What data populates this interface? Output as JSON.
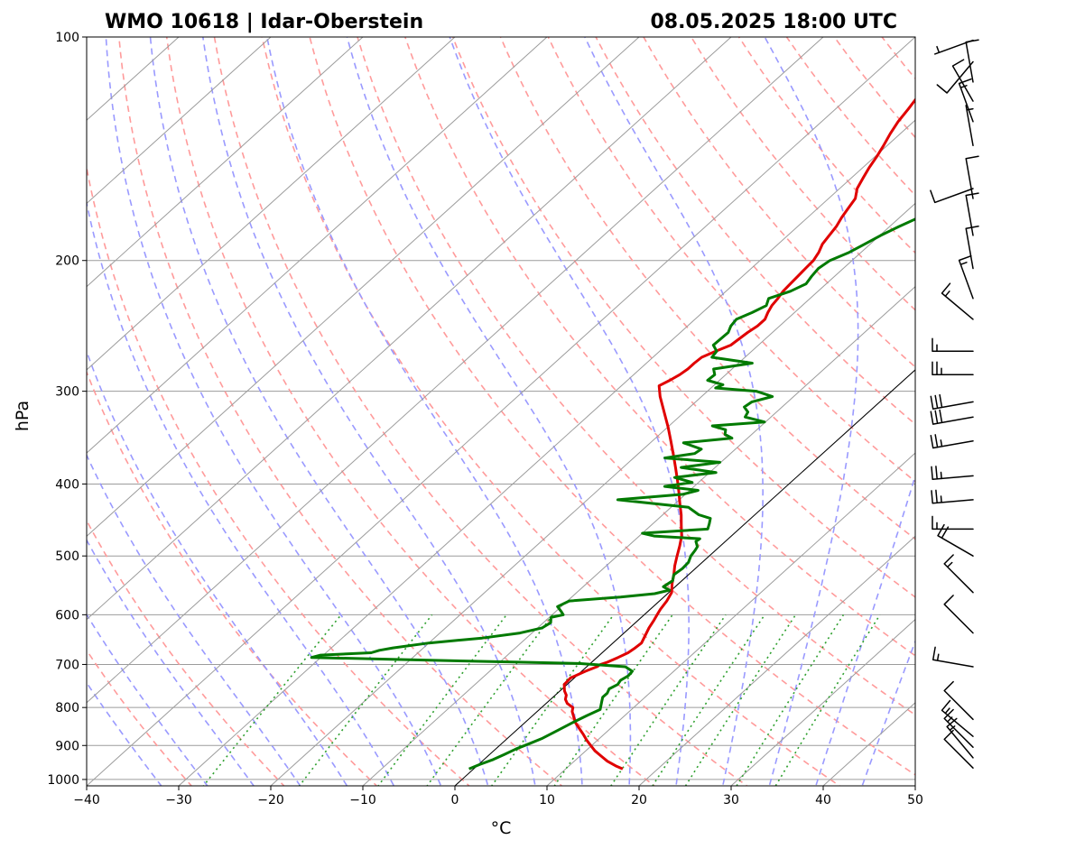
{
  "header": {
    "title_left": "WMO 10618 | Idar-Oberstein",
    "title_right": "08.05.2025 18:00 UTC"
  },
  "chart_data": {
    "type": "skew-t log-p",
    "xlabel": "°C",
    "ylabel": "hPa",
    "xlim": [
      -40,
      50
    ],
    "ylim": [
      1020,
      100
    ],
    "x_ticks": [
      -40,
      -30,
      -20,
      -10,
      0,
      10,
      20,
      30,
      40,
      50
    ],
    "x_tick_labels": [
      "−40",
      "−30",
      "−20",
      "−10",
      "0",
      "10",
      "20",
      "30",
      "40",
      "50"
    ],
    "p_ticks": [
      1000,
      900,
      800,
      700,
      600,
      500,
      400,
      300,
      200,
      100
    ],
    "p_tick_labels": [
      "1000",
      "900",
      "800",
      "700",
      "600",
      "500",
      "400",
      "300",
      "200",
      "100"
    ],
    "grid": true,
    "colors": {
      "temperature": "#e00000",
      "dewpoint": "#007a00",
      "dry_adiabat": "#ff9b9b",
      "moist_adiabat": "#9a9aff",
      "mixing_ratio": "#2ea02e",
      "isotherm": "#9c9c9c",
      "zero_isotherm": "#000000",
      "barb": "#000000"
    },
    "series": [
      {
        "key": "temperature",
        "pressure": [
          968,
          960,
          945,
          930,
          915,
          900,
          885,
          870,
          855,
          840,
          825,
          810,
          800,
          790,
          780,
          770,
          760,
          745,
          730,
          715,
          705,
          700,
          695,
          685,
          675,
          665,
          655,
          640,
          625,
          610,
          600,
          590,
          575,
          560,
          545,
          530,
          515,
          500,
          485,
          470,
          455,
          440,
          425,
          410,
          395,
          380,
          365,
          350,
          335,
          320,
          305,
          295,
          290,
          285,
          280,
          275,
          270,
          265,
          260,
          250,
          245,
          240,
          235,
          230,
          225,
          220,
          215,
          210,
          205,
          200,
          195,
          190,
          185,
          180,
          175,
          170,
          165,
          160,
          155,
          150,
          145,
          140,
          135,
          130,
          125,
          120,
          117,
          114,
          112,
          108,
          104,
          100
        ],
        "temperature": [
          16.2,
          15.2,
          13.6,
          12.3,
          11.0,
          9.9,
          8.8,
          7.8,
          6.7,
          5.6,
          4.7,
          3.8,
          3.4,
          2.3,
          1.6,
          1.2,
          0.5,
          -0.3,
          -0.4,
          0.4,
          1.1,
          1.2,
          1.7,
          2.3,
          2.8,
          3.0,
          3.1,
          2.6,
          2.1,
          1.7,
          1.4,
          1.1,
          0.8,
          0.3,
          -0.7,
          -1.6,
          -2.6,
          -3.5,
          -4.4,
          -5.4,
          -6.7,
          -8.0,
          -9.5,
          -11.0,
          -12.6,
          -14.3,
          -16.1,
          -18.0,
          -20.0,
          -22.2,
          -24.5,
          -25.9,
          -25.4,
          -25.0,
          -24.8,
          -24.8,
          -24.7,
          -23.9,
          -23.0,
          -22.7,
          -22.4,
          -22.4,
          -22.9,
          -23.3,
          -23.5,
          -23.8,
          -23.9,
          -24.0,
          -24.1,
          -24.2,
          -24.6,
          -25.2,
          -25.5,
          -25.8,
          -26.3,
          -26.7,
          -27.1,
          -28.1,
          -28.7,
          -29.3,
          -29.8,
          -30.4,
          -31.1,
          -31.7,
          -32.1,
          -32.6,
          -32.8,
          -33.1,
          -33.0,
          -33.6,
          -34.2,
          -34.9
        ]
      },
      {
        "key": "dewpoint",
        "pressure": [
          968,
          955,
          940,
          925,
          910,
          895,
          880,
          865,
          850,
          835,
          820,
          805,
          795,
          785,
          775,
          765,
          755,
          745,
          735,
          725,
          715,
          705,
          698,
          695,
          690,
          685,
          680,
          675,
          670,
          665,
          655,
          645,
          635,
          625,
          615,
          605,
          600,
          595,
          585,
          575,
          568,
          562,
          556,
          550,
          540,
          530,
          520,
          510,
          500,
          492,
          486,
          478,
          474,
          470,
          466,
          460,
          452,
          445,
          440,
          430,
          420,
          413,
          408,
          403,
          398,
          392,
          386,
          380,
          374,
          369,
          364,
          359,
          352,
          347,
          343,
          338,
          334,
          330,
          325,
          320,
          315,
          310,
          305,
          300,
          297,
          294,
          290,
          285,
          280,
          275,
          270,
          265,
          260,
          250,
          245,
          240,
          235,
          230,
          225,
          220,
          215,
          210,
          205,
          200,
          195,
          190,
          185,
          180,
          175,
          170,
          165,
          160,
          155,
          150,
          145,
          140,
          135,
          130,
          125,
          120,
          116,
          112,
          108,
          104,
          100
        ],
        "dewpoint": [
          -0.5,
          0.1,
          1.0,
          1.6,
          2.2,
          3.0,
          3.8,
          4.3,
          4.8,
          5.3,
          5.9,
          6.6,
          6.2,
          5.8,
          5.4,
          5.4,
          5.1,
          5.5,
          5.3,
          5.6,
          5.5,
          4.2,
          -1.2,
          -8.0,
          -20.0,
          -31.0,
          -30.3,
          -25.1,
          -24.5,
          -23.3,
          -20.0,
          -14.8,
          -11.3,
          -9.5,
          -9.2,
          -9.8,
          -8.8,
          -9.3,
          -10.4,
          -9.8,
          -4.7,
          -1.4,
          -0.2,
          -1.3,
          -1.0,
          -1.6,
          -1.4,
          -1.5,
          -2.0,
          -2.2,
          -2.4,
          -3.2,
          -3.1,
          -8.4,
          -10.0,
          -3.4,
          -3.9,
          -4.4,
          -6.1,
          -8.1,
          -16.7,
          -10.3,
          -9.1,
          -13.2,
          -10.7,
          -13.2,
          -9.3,
          -13.7,
          -10.1,
          -16.6,
          -13.9,
          -13.7,
          -16.4,
          -11.7,
          -12.9,
          -13.4,
          -15.3,
          -10.1,
          -12.8,
          -13.1,
          -14.1,
          -13.9,
          -12.3,
          -14.7,
          -19.5,
          -19.1,
          -21.3,
          -21.2,
          -22.0,
          -18.5,
          -23.6,
          -23.8,
          -24.9,
          -24.8,
          -25.3,
          -25.5,
          -24.6,
          -23.9,
          -24.5,
          -23.0,
          -22.2,
          -22.5,
          -22.7,
          -22.4,
          -21.3,
          -20.6,
          -19.9,
          -19.0,
          -17.9,
          -16.9,
          -15.7,
          -14.7,
          -13.3,
          -12.4,
          -11.6,
          -10.4,
          -9.2,
          -8.0,
          -7.0,
          -6.0,
          -5.3,
          -4.8,
          -4.7,
          -4.0,
          -3.5
        ]
      }
    ],
    "wind_barbs": [
      {
        "pressure": 965,
        "dir": 315,
        "speed_kt": 10
      },
      {
        "pressure": 935,
        "dir": 320,
        "speed_kt": 15
      },
      {
        "pressure": 905,
        "dir": 315,
        "speed_kt": 15
      },
      {
        "pressure": 875,
        "dir": 310,
        "speed_kt": 15
      },
      {
        "pressure": 830,
        "dir": 315,
        "speed_kt": 10
      },
      {
        "pressure": 705,
        "dir": 280,
        "speed_kt": 15
      },
      {
        "pressure": 635,
        "dir": 315,
        "speed_kt": 10
      },
      {
        "pressure": 560,
        "dir": 315,
        "speed_kt": 15
      },
      {
        "pressure": 500,
        "dir": 300,
        "speed_kt": 20
      },
      {
        "pressure": 460,
        "dir": 270,
        "speed_kt": 15
      },
      {
        "pressure": 420,
        "dir": 265,
        "speed_kt": 25
      },
      {
        "pressure": 390,
        "dir": 265,
        "speed_kt": 25
      },
      {
        "pressure": 350,
        "dir": 260,
        "speed_kt": 25
      },
      {
        "pressure": 325,
        "dir": 260,
        "speed_kt": 30
      },
      {
        "pressure": 310,
        "dir": 260,
        "speed_kt": 30
      },
      {
        "pressure": 285,
        "dir": 270,
        "speed_kt": 25
      },
      {
        "pressure": 265,
        "dir": 270,
        "speed_kt": 15
      },
      {
        "pressure": 240,
        "dir": 310,
        "speed_kt": 15
      },
      {
        "pressure": 225,
        "dir": 340,
        "speed_kt": 15
      },
      {
        "pressure": 205,
        "dir": 350,
        "speed_kt": 10
      },
      {
        "pressure": 185,
        "dir": 350,
        "speed_kt": 10
      },
      {
        "pressure": 165,
        "dir": 350,
        "speed_kt": 10
      },
      {
        "pressure": 160,
        "dir": 250,
        "speed_kt": 10
      },
      {
        "pressure": 140,
        "dir": 350,
        "speed_kt": 5
      },
      {
        "pressure": 130,
        "dir": 340,
        "speed_kt": 15
      },
      {
        "pressure": 122,
        "dir": 330,
        "speed_kt": 10
      },
      {
        "pressure": 115,
        "dir": 350,
        "speed_kt": 10
      },
      {
        "pressure": 108,
        "dir": 220,
        "speed_kt": 10
      },
      {
        "pressure": 101,
        "dir": 250,
        "speed_kt": 5
      }
    ]
  }
}
